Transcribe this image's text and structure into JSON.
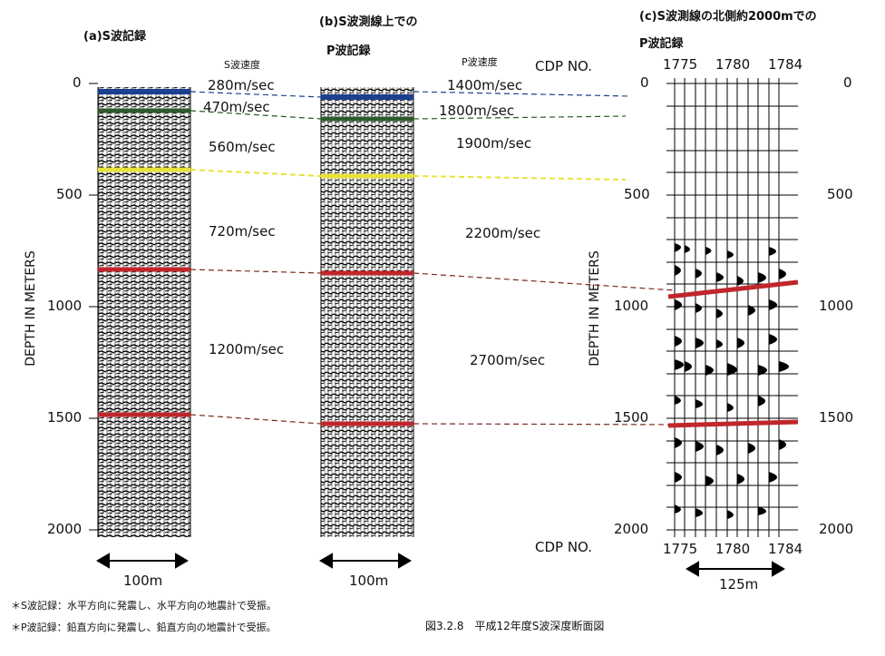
{
  "panel_a": {
    "title": "(a)S波記録",
    "scale_label": "100m"
  },
  "panel_b": {
    "title_line1": "(b)S波測線上での",
    "title_line2": "P波記録",
    "scale_label": "100m"
  },
  "panel_c": {
    "title_line1": "(c)S波測線の北側約2000mでの",
    "title_line2": "P波記録",
    "scale_label": "125m",
    "cdp_label": "CDP NO.",
    "cdp_ticks": [
      "1775",
      "1780",
      "1784"
    ]
  },
  "s_velocity_header": "S波速度",
  "p_velocity_header": "P波速度",
  "s_velocities": [
    "280m/sec",
    "470m/sec",
    "560m/sec",
    "720m/sec",
    "1200m/sec"
  ],
  "p_velocities": [
    "1400m/sec",
    "1800m/sec",
    "1900m/sec",
    "2200m/sec",
    "2700m/sec"
  ],
  "depth_axis_label": "DEPTH IN METERS",
  "depth_ticks": [
    "0",
    "500",
    "1000",
    "1500",
    "2000"
  ],
  "notes": [
    "＊S波記録：水平方向に発震し、水平方向の地震計で受振。",
    "＊P波記録：鉛直方向に発震し、鉛直方向の地震計で受振。"
  ],
  "caption": "図3.2.8　平成12年度S波深度断面図",
  "colors": {
    "blue": "#1c3f8f",
    "green": "#2d5a2a",
    "yellow": "#e8e23a",
    "red": "#c0262b",
    "dash": "#7a2a20"
  }
}
